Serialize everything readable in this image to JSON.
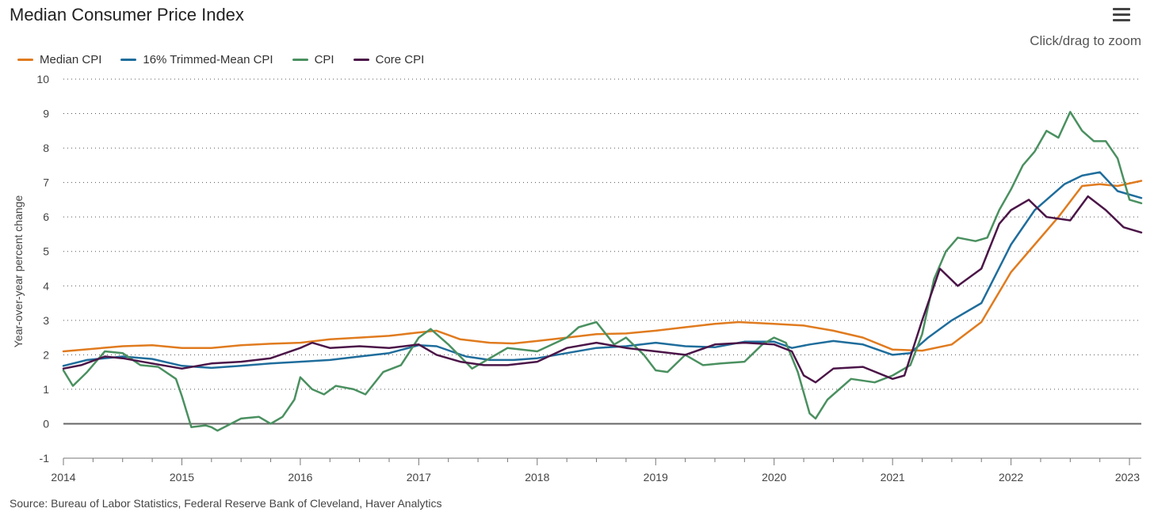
{
  "header": {
    "title": "Median Consumer Price Index",
    "zoom_hint": "Click/drag to zoom",
    "menu_icon": "hamburger-menu-icon"
  },
  "legend": [
    {
      "label": "Median CPI",
      "color": "#e07b1f"
    },
    {
      "label": "16% Trimmed-Mean CPI",
      "color": "#1f6d9c"
    },
    {
      "label": "CPI",
      "color": "#4a9060"
    },
    {
      "label": "Core CPI",
      "color": "#4b1548"
    }
  ],
  "footer": {
    "source": "Source: Bureau of Labor Statistics, Federal Reserve Bank of Cleveland, Haver Analytics"
  },
  "chart_data": {
    "type": "line",
    "title": "Median Consumer Price Index",
    "xlabel": "",
    "ylabel": "Year-over-year percent change",
    "xlim": [
      2014.0,
      2023.1
    ],
    "ylim": [
      -1,
      10
    ],
    "x_ticks": [
      "2014",
      "2015",
      "2016",
      "2017",
      "2018",
      "2019",
      "2020",
      "2021",
      "2022",
      "2023"
    ],
    "y_ticks": [
      "-1",
      "0",
      "1",
      "2",
      "3",
      "4",
      "5",
      "6",
      "7",
      "8",
      "9",
      "10"
    ],
    "grid": "horizontal dotted",
    "legend_position": "top-left",
    "series": [
      {
        "name": "Median CPI",
        "color": "#e07b1f",
        "points": [
          [
            2014.0,
            2.1
          ],
          [
            2014.5,
            2.25
          ],
          [
            2014.75,
            2.28
          ],
          [
            2015.0,
            2.2
          ],
          [
            2015.25,
            2.2
          ],
          [
            2015.5,
            2.28
          ],
          [
            2015.75,
            2.32
          ],
          [
            2016.0,
            2.35
          ],
          [
            2016.25,
            2.45
          ],
          [
            2016.5,
            2.5
          ],
          [
            2016.75,
            2.55
          ],
          [
            2017.0,
            2.65
          ],
          [
            2017.15,
            2.7
          ],
          [
            2017.35,
            2.45
          ],
          [
            2017.6,
            2.35
          ],
          [
            2017.8,
            2.33
          ],
          [
            2018.0,
            2.4
          ],
          [
            2018.25,
            2.5
          ],
          [
            2018.5,
            2.6
          ],
          [
            2018.75,
            2.62
          ],
          [
            2019.0,
            2.7
          ],
          [
            2019.25,
            2.8
          ],
          [
            2019.5,
            2.9
          ],
          [
            2019.7,
            2.95
          ],
          [
            2020.0,
            2.9
          ],
          [
            2020.25,
            2.85
          ],
          [
            2020.5,
            2.7
          ],
          [
            2020.75,
            2.5
          ],
          [
            2021.0,
            2.15
          ],
          [
            2021.25,
            2.12
          ],
          [
            2021.5,
            2.3
          ],
          [
            2021.75,
            2.95
          ],
          [
            2022.0,
            4.4
          ],
          [
            2022.2,
            5.2
          ],
          [
            2022.4,
            6.0
          ],
          [
            2022.6,
            6.9
          ],
          [
            2022.75,
            6.95
          ],
          [
            2022.9,
            6.9
          ],
          [
            2023.1,
            7.05
          ]
        ]
      },
      {
        "name": "16% Trimmed-Mean CPI",
        "color": "#1f6d9c",
        "points": [
          [
            2014.0,
            1.68
          ],
          [
            2014.2,
            1.85
          ],
          [
            2014.5,
            1.95
          ],
          [
            2014.75,
            1.88
          ],
          [
            2015.0,
            1.68
          ],
          [
            2015.25,
            1.62
          ],
          [
            2015.5,
            1.68
          ],
          [
            2015.75,
            1.75
          ],
          [
            2016.0,
            1.8
          ],
          [
            2016.25,
            1.85
          ],
          [
            2016.5,
            1.95
          ],
          [
            2016.75,
            2.05
          ],
          [
            2017.0,
            2.28
          ],
          [
            2017.15,
            2.25
          ],
          [
            2017.4,
            1.95
          ],
          [
            2017.6,
            1.85
          ],
          [
            2017.8,
            1.85
          ],
          [
            2018.0,
            1.9
          ],
          [
            2018.25,
            2.05
          ],
          [
            2018.5,
            2.2
          ],
          [
            2018.75,
            2.25
          ],
          [
            2019.0,
            2.35
          ],
          [
            2019.25,
            2.25
          ],
          [
            2019.5,
            2.22
          ],
          [
            2019.75,
            2.38
          ],
          [
            2020.0,
            2.38
          ],
          [
            2020.15,
            2.2
          ],
          [
            2020.3,
            2.3
          ],
          [
            2020.5,
            2.4
          ],
          [
            2020.75,
            2.3
          ],
          [
            2021.0,
            2.0
          ],
          [
            2021.15,
            2.05
          ],
          [
            2021.3,
            2.5
          ],
          [
            2021.5,
            3.0
          ],
          [
            2021.75,
            3.5
          ],
          [
            2022.0,
            5.2
          ],
          [
            2022.2,
            6.2
          ],
          [
            2022.45,
            6.95
          ],
          [
            2022.6,
            7.2
          ],
          [
            2022.75,
            7.3
          ],
          [
            2022.9,
            6.75
          ],
          [
            2023.1,
            6.55
          ]
        ]
      },
      {
        "name": "CPI",
        "color": "#4a9060",
        "points": [
          [
            2014.0,
            1.55
          ],
          [
            2014.08,
            1.1
          ],
          [
            2014.2,
            1.5
          ],
          [
            2014.35,
            2.1
          ],
          [
            2014.5,
            2.05
          ],
          [
            2014.65,
            1.7
          ],
          [
            2014.8,
            1.65
          ],
          [
            2014.95,
            1.3
          ],
          [
            2015.0,
            0.8
          ],
          [
            2015.08,
            -0.1
          ],
          [
            2015.2,
            -0.05
          ],
          [
            2015.25,
            -0.1
          ],
          [
            2015.3,
            -0.2
          ],
          [
            2015.5,
            0.15
          ],
          [
            2015.65,
            0.2
          ],
          [
            2015.75,
            0.0
          ],
          [
            2015.85,
            0.2
          ],
          [
            2015.95,
            0.7
          ],
          [
            2016.0,
            1.35
          ],
          [
            2016.1,
            1.0
          ],
          [
            2016.2,
            0.85
          ],
          [
            2016.3,
            1.1
          ],
          [
            2016.45,
            1.0
          ],
          [
            2016.55,
            0.85
          ],
          [
            2016.7,
            1.5
          ],
          [
            2016.85,
            1.7
          ],
          [
            2017.0,
            2.5
          ],
          [
            2017.1,
            2.75
          ],
          [
            2017.25,
            2.3
          ],
          [
            2017.45,
            1.6
          ],
          [
            2017.6,
            1.9
          ],
          [
            2017.75,
            2.2
          ],
          [
            2018.0,
            2.1
          ],
          [
            2018.25,
            2.5
          ],
          [
            2018.35,
            2.8
          ],
          [
            2018.5,
            2.95
          ],
          [
            2018.65,
            2.3
          ],
          [
            2018.75,
            2.5
          ],
          [
            2018.9,
            2.0
          ],
          [
            2019.0,
            1.55
          ],
          [
            2019.1,
            1.5
          ],
          [
            2019.25,
            2.0
          ],
          [
            2019.4,
            1.7
          ],
          [
            2019.55,
            1.75
          ],
          [
            2019.75,
            1.8
          ],
          [
            2019.9,
            2.3
          ],
          [
            2020.0,
            2.5
          ],
          [
            2020.1,
            2.35
          ],
          [
            2020.2,
            1.5
          ],
          [
            2020.3,
            0.3
          ],
          [
            2020.35,
            0.15
          ],
          [
            2020.45,
            0.7
          ],
          [
            2020.65,
            1.3
          ],
          [
            2020.85,
            1.2
          ],
          [
            2021.0,
            1.4
          ],
          [
            2021.15,
            1.7
          ],
          [
            2021.25,
            2.6
          ],
          [
            2021.35,
            4.2
          ],
          [
            2021.45,
            5.0
          ],
          [
            2021.55,
            5.4
          ],
          [
            2021.7,
            5.3
          ],
          [
            2021.8,
            5.4
          ],
          [
            2021.9,
            6.2
          ],
          [
            2022.0,
            6.8
          ],
          [
            2022.1,
            7.5
          ],
          [
            2022.2,
            7.9
          ],
          [
            2022.3,
            8.5
          ],
          [
            2022.4,
            8.3
          ],
          [
            2022.5,
            9.05
          ],
          [
            2022.6,
            8.5
          ],
          [
            2022.7,
            8.2
          ],
          [
            2022.8,
            8.2
          ],
          [
            2022.9,
            7.7
          ],
          [
            2023.0,
            6.5
          ],
          [
            2023.1,
            6.4
          ]
        ]
      },
      {
        "name": "Core CPI",
        "color": "#4b1548",
        "points": [
          [
            2014.0,
            1.6
          ],
          [
            2014.15,
            1.7
          ],
          [
            2014.35,
            1.95
          ],
          [
            2014.5,
            1.9
          ],
          [
            2014.75,
            1.75
          ],
          [
            2015.0,
            1.6
          ],
          [
            2015.25,
            1.75
          ],
          [
            2015.5,
            1.8
          ],
          [
            2015.75,
            1.9
          ],
          [
            2016.0,
            2.2
          ],
          [
            2016.1,
            2.35
          ],
          [
            2016.25,
            2.2
          ],
          [
            2016.5,
            2.25
          ],
          [
            2016.75,
            2.2
          ],
          [
            2017.0,
            2.3
          ],
          [
            2017.15,
            2.0
          ],
          [
            2017.35,
            1.8
          ],
          [
            2017.55,
            1.7
          ],
          [
            2017.75,
            1.7
          ],
          [
            2018.0,
            1.8
          ],
          [
            2018.25,
            2.2
          ],
          [
            2018.5,
            2.35
          ],
          [
            2018.75,
            2.2
          ],
          [
            2019.0,
            2.1
          ],
          [
            2019.25,
            2.0
          ],
          [
            2019.5,
            2.3
          ],
          [
            2019.75,
            2.35
          ],
          [
            2020.0,
            2.3
          ],
          [
            2020.15,
            2.1
          ],
          [
            2020.25,
            1.4
          ],
          [
            2020.35,
            1.2
          ],
          [
            2020.5,
            1.6
          ],
          [
            2020.75,
            1.65
          ],
          [
            2021.0,
            1.3
          ],
          [
            2021.1,
            1.4
          ],
          [
            2021.25,
            3.0
          ],
          [
            2021.4,
            4.5
          ],
          [
            2021.55,
            4.0
          ],
          [
            2021.75,
            4.5
          ],
          [
            2021.9,
            5.8
          ],
          [
            2022.0,
            6.2
          ],
          [
            2022.15,
            6.5
          ],
          [
            2022.3,
            6.0
          ],
          [
            2022.5,
            5.9
          ],
          [
            2022.65,
            6.6
          ],
          [
            2022.8,
            6.2
          ],
          [
            2022.95,
            5.7
          ],
          [
            2023.1,
            5.55
          ]
        ]
      }
    ]
  }
}
